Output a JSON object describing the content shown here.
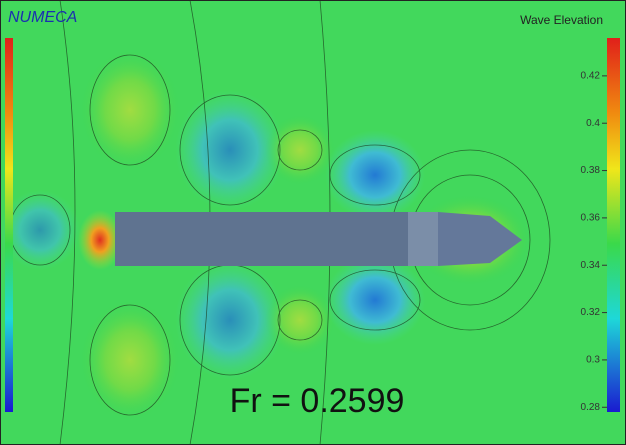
{
  "brand": "NUMECA",
  "colorbar": {
    "title": "Wave Elevation",
    "lim": [
      0.278,
      0.436
    ],
    "ticks": [
      0.28,
      0.3,
      0.32,
      0.34,
      0.36,
      0.38,
      0.4,
      0.42
    ]
  },
  "annotation": "Fr = 0.2599"
}
